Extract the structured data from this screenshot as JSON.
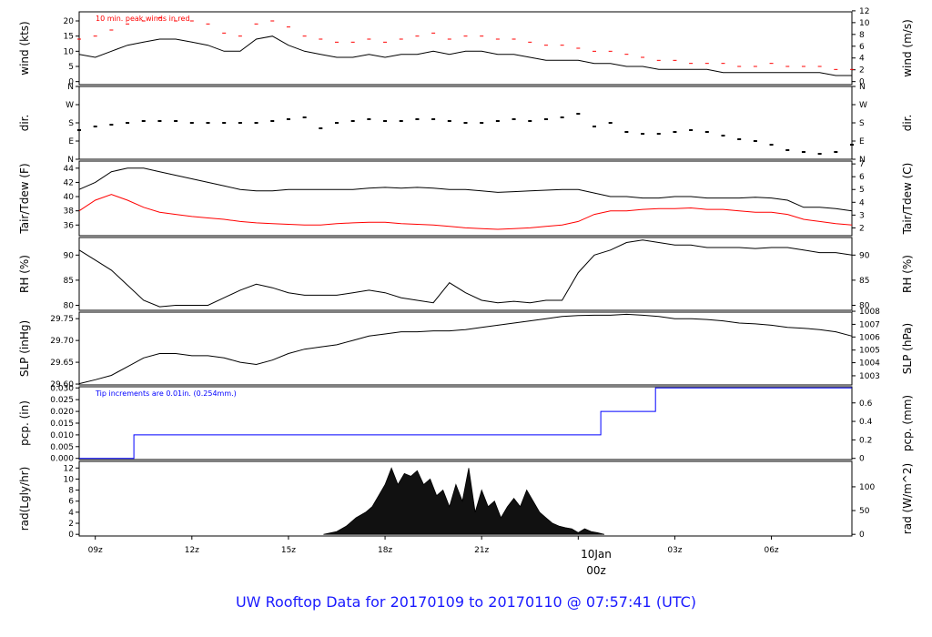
{
  "title": "UW Rooftop Data for 20170109  to  20170110 @ 07:57:41  (UTC)",
  "colors": {
    "title": "#1a1aff",
    "peak": "#ff0000",
    "dew": "#ff0000",
    "precip": "#0000ff",
    "date_marker": "#ff0000",
    "data": "#000000"
  },
  "x_axis": {
    "ticks": [
      {
        "label": "09z",
        "hour": 0.5
      },
      {
        "label": "12z",
        "hour": 3.5
      },
      {
        "label": "15z",
        "hour": 6.5
      },
      {
        "label": "18z",
        "hour": 9.5
      },
      {
        "label": "21z",
        "hour": 12.5
      },
      {
        "label": "03z",
        "hour": 18.5
      },
      {
        "label": "06z",
        "hour": 21.5
      }
    ],
    "date_marker": {
      "line1": "10Jan",
      "line2": "00z",
      "hour": 15.5
    }
  },
  "chart_data": [
    {
      "type": "line",
      "ylabel": "wind (kts)",
      "ylabel_right": "wind (m/s)",
      "annotation": "10 min. peak winds in red",
      "ylim": [
        -1,
        23
      ],
      "yticks_left": [
        0,
        5,
        10,
        15,
        20
      ],
      "yticks_right": [
        "0",
        "2",
        "4",
        "6",
        "8",
        "10",
        "12"
      ],
      "right_tick_values_kts": [
        0,
        3.89,
        7.78,
        11.66,
        15.55,
        19.44,
        23.33
      ],
      "series": [
        {
          "role": "wind",
          "x": [
            0,
            0.5,
            1,
            1.5,
            2,
            2.5,
            3,
            3.5,
            4,
            4.5,
            5,
            5.5,
            6,
            6.5,
            7,
            7.5,
            8,
            8.5,
            9,
            9.5,
            10,
            10.5,
            11,
            11.5,
            12,
            12.5,
            13,
            13.5,
            14,
            14.5,
            15,
            15.5,
            16,
            16.5,
            17,
            17.5,
            18,
            18.5,
            19,
            19.5,
            20,
            20.5,
            21,
            21.5,
            22,
            22.5,
            23,
            23.5,
            24
          ],
          "y": [
            9,
            8,
            10,
            12,
            13,
            14,
            14,
            13,
            12,
            10,
            10,
            14,
            15,
            12,
            10,
            9,
            8,
            8,
            9,
            8,
            9,
            9,
            10,
            9,
            10,
            10,
            9,
            9,
            8,
            7,
            7,
            7,
            6,
            6,
            5,
            5,
            4,
            4,
            4,
            4,
            3,
            3,
            3,
            3,
            3,
            3,
            3,
            2,
            2
          ]
        },
        {
          "role": "peak",
          "x": [
            0,
            0.5,
            1,
            1.5,
            2,
            2.5,
            3,
            3.5,
            4,
            4.5,
            5,
            5.5,
            6,
            6.5,
            7,
            7.5,
            8,
            8.5,
            9,
            9.5,
            10,
            10.5,
            11,
            11.5,
            12,
            12.5,
            13,
            13.5,
            14,
            14.5,
            15,
            15.5,
            16,
            16.5,
            17,
            17.5,
            18,
            18.5,
            19,
            19.5,
            20,
            20.5,
            21,
            21.5,
            22,
            22.5,
            23,
            23.5,
            24
          ],
          "y": [
            14,
            15,
            17,
            19,
            20,
            21,
            20,
            20,
            19,
            16,
            15,
            19,
            20,
            18,
            15,
            14,
            13,
            13,
            14,
            13,
            14,
            15,
            16,
            14,
            15,
            15,
            14,
            14,
            13,
            12,
            12,
            11,
            10,
            10,
            9,
            8,
            7,
            7,
            6,
            6,
            6,
            5,
            5,
            6,
            5,
            5,
            5,
            4,
            4
          ]
        }
      ]
    },
    {
      "type": "scatter",
      "ylabel": "dir.",
      "ylabel_right": "dir.",
      "ylim": [
        0,
        4
      ],
      "yticks": [
        "N",
        "E",
        "S",
        "W",
        "N"
      ],
      "series": [
        {
          "role": "direction",
          "x": [
            0,
            0.5,
            1,
            1.5,
            2,
            2.5,
            3,
            3.5,
            4,
            4.5,
            5,
            5.5,
            6,
            6.5,
            7,
            7.5,
            8,
            8.5,
            9,
            9.5,
            10,
            10.5,
            11,
            11.5,
            12,
            12.5,
            13,
            13.5,
            14,
            14.5,
            15,
            15.5,
            16,
            16.5,
            17,
            17.5,
            18,
            18.5,
            19,
            19.5,
            20,
            20.5,
            21,
            21.5,
            22,
            22.5,
            23,
            23.5,
            24
          ],
          "y": [
            1.6,
            1.8,
            1.9,
            2.0,
            2.1,
            2.1,
            2.1,
            2.0,
            2.0,
            2.0,
            2.0,
            2.0,
            2.1,
            2.2,
            2.3,
            1.7,
            2.0,
            2.1,
            2.2,
            2.1,
            2.1,
            2.2,
            2.2,
            2.1,
            2.0,
            2.0,
            2.1,
            2.2,
            2.1,
            2.2,
            2.3,
            2.5,
            1.8,
            2.0,
            1.5,
            1.4,
            1.4,
            1.5,
            1.6,
            1.5,
            1.3,
            1.1,
            1.0,
            0.8,
            0.5,
            0.4,
            0.3,
            0.4,
            0.8
          ]
        }
      ]
    },
    {
      "type": "line",
      "ylabel": "Tair/Tdew (F)",
      "ylabel_right": "Tair/Tdew (C)",
      "ylim": [
        34.5,
        45
      ],
      "yticks_left": [
        36,
        38,
        40,
        42,
        44
      ],
      "yticks_right": [
        "2",
        "3",
        "4",
        "5",
        "6",
        "7"
      ],
      "right_tick_values_F": [
        35.6,
        37.4,
        39.2,
        41.0,
        42.8,
        44.6
      ],
      "series": [
        {
          "role": "tair",
          "x": [
            0,
            0.5,
            1,
            1.5,
            2,
            2.5,
            3,
            3.5,
            4,
            4.5,
            5,
            5.5,
            6,
            6.5,
            7,
            7.5,
            8,
            8.5,
            9,
            9.5,
            10,
            10.5,
            11,
            11.5,
            12,
            12.5,
            13,
            13.5,
            14,
            14.5,
            15,
            15.5,
            16,
            16.5,
            17,
            17.5,
            18,
            18.5,
            19,
            19.5,
            20,
            20.5,
            21,
            21.5,
            22,
            22.5,
            23,
            23.5,
            24
          ],
          "y": [
            41,
            42,
            43.5,
            44,
            44,
            43.5,
            43,
            42.5,
            42,
            41.5,
            41,
            40.8,
            40.8,
            41,
            41,
            41,
            41,
            41,
            41.2,
            41.3,
            41.2,
            41.3,
            41.2,
            41,
            41,
            40.8,
            40.6,
            40.7,
            40.8,
            40.9,
            41,
            41,
            40.5,
            40,
            40,
            39.8,
            39.8,
            40,
            40,
            39.8,
            39.8,
            39.8,
            39.9,
            39.8,
            39.5,
            38.5,
            38.5,
            38.3,
            38
          ]
        },
        {
          "role": "tdew",
          "x": [
            0,
            0.5,
            1,
            1.5,
            2,
            2.5,
            3,
            3.5,
            4,
            4.5,
            5,
            5.5,
            6,
            6.5,
            7,
            7.5,
            8,
            8.5,
            9,
            9.5,
            10,
            10.5,
            11,
            11.5,
            12,
            12.5,
            13,
            13.5,
            14,
            14.5,
            15,
            15.5,
            16,
            16.5,
            17,
            17.5,
            18,
            18.5,
            19,
            19.5,
            20,
            20.5,
            21,
            21.5,
            22,
            22.5,
            23,
            23.5,
            24
          ],
          "y": [
            38,
            39.5,
            40.3,
            39.5,
            38.5,
            37.8,
            37.5,
            37.2,
            37,
            36.8,
            36.5,
            36.3,
            36.2,
            36.1,
            36,
            36,
            36.2,
            36.3,
            36.4,
            36.4,
            36.2,
            36.1,
            36,
            35.8,
            35.6,
            35.5,
            35.4,
            35.5,
            35.6,
            35.8,
            36,
            36.5,
            37.5,
            38,
            38,
            38.2,
            38.3,
            38.3,
            38.4,
            38.2,
            38.2,
            38,
            37.8,
            37.8,
            37.5,
            36.8,
            36.5,
            36.2,
            36
          ]
        }
      ]
    },
    {
      "type": "line",
      "ylabel": "RH (%)",
      "ylabel_right": "RH (%)",
      "ylim": [
        79,
        93.5
      ],
      "yticks_left": [
        80,
        85,
        90
      ],
      "yticks_right": [
        "80",
        "85",
        "90"
      ],
      "series": [
        {
          "role": "rh",
          "x": [
            0,
            0.5,
            1,
            1.5,
            2,
            2.5,
            3,
            3.5,
            4,
            4.5,
            5,
            5.5,
            6,
            6.5,
            7,
            7.5,
            8,
            8.5,
            9,
            9.5,
            10,
            10.5,
            11,
            11.5,
            12,
            12.5,
            13,
            13.5,
            14,
            14.5,
            15,
            15.5,
            16,
            16.5,
            17,
            17.5,
            18,
            18.5,
            19,
            19.5,
            20,
            20.5,
            21,
            21.5,
            22,
            22.5,
            23,
            23.5,
            24
          ],
          "y": [
            91,
            89,
            87,
            84,
            81,
            79.7,
            80,
            80,
            80,
            81.5,
            83,
            84.2,
            83.5,
            82.5,
            82,
            82,
            82,
            82.5,
            83,
            82.5,
            81.5,
            81,
            80.5,
            84.5,
            82.5,
            81,
            80.5,
            80.8,
            80.5,
            81,
            81,
            86.5,
            90,
            91,
            92.5,
            93,
            92.5,
            92,
            92,
            91.5,
            91.5,
            91.5,
            91.3,
            91.5,
            91.5,
            91,
            90.5,
            90.5,
            90
          ]
        }
      ]
    },
    {
      "type": "line",
      "ylabel": "SLP (inHg)",
      "ylabel_right": "SLP (hPa)",
      "ylim": [
        29.598,
        29.765
      ],
      "yticks_left": [
        "29.60",
        "29.65",
        "29.70",
        "29.75"
      ],
      "yticks_right": [
        "1003",
        "1004",
        "1005",
        "1006",
        "1007",
        "1008"
      ],
      "right_tick_values_inHg": [
        29.619,
        29.649,
        29.678,
        29.708,
        29.737,
        29.767
      ],
      "series": [
        {
          "role": "slp",
          "x": [
            0,
            0.5,
            1,
            1.5,
            2,
            2.5,
            3,
            3.5,
            4,
            4.5,
            5,
            5.5,
            6,
            6.5,
            7,
            7.5,
            8,
            8.5,
            9,
            9.5,
            10,
            10.5,
            11,
            11.5,
            12,
            12.5,
            13,
            13.5,
            14,
            14.5,
            15,
            15.5,
            16,
            16.5,
            17,
            17.5,
            18,
            18.5,
            19,
            19.5,
            20,
            20.5,
            21,
            21.5,
            22,
            22.5,
            23,
            23.5,
            24
          ],
          "y": [
            29.601,
            29.61,
            29.62,
            29.64,
            29.66,
            29.67,
            29.67,
            29.665,
            29.665,
            29.66,
            29.65,
            29.645,
            29.655,
            29.67,
            29.68,
            29.685,
            29.69,
            29.7,
            29.71,
            29.715,
            29.72,
            29.72,
            29.722,
            29.722,
            29.725,
            29.73,
            29.735,
            29.74,
            29.745,
            29.75,
            29.755,
            29.757,
            29.758,
            29.758,
            29.76,
            29.758,
            29.755,
            29.75,
            29.75,
            29.748,
            29.745,
            29.74,
            29.738,
            29.735,
            29.73,
            29.728,
            29.725,
            29.72,
            29.71
          ]
        }
      ]
    },
    {
      "type": "line",
      "ylabel": "pcp. (in)",
      "ylabel_right": "pcp. (mm)",
      "annotation": "Tip increments are 0.01in. (0.254mm.)",
      "ylim": [
        -0.0005,
        0.0305
      ],
      "yticks_left": [
        "0.000",
        "0.005",
        "0.010",
        "0.015",
        "0.020",
        "0.025",
        "0.030"
      ],
      "yticks_right": [
        "0",
        "0.2",
        "0.4",
        "0.6"
      ],
      "right_tick_values_in": [
        0,
        0.00787,
        0.01575,
        0.02362
      ],
      "series": [
        {
          "role": "precip",
          "x": [
            0,
            1.7,
            1.7,
            16.2,
            16.2,
            17.9,
            17.9,
            24
          ],
          "y": [
            0,
            0,
            0.01,
            0.01,
            0.02,
            0.02,
            0.03,
            0.03
          ]
        }
      ]
    },
    {
      "type": "area",
      "ylabel": "rad(Lgly/hr)",
      "ylabel_right": "rad (W/m^2)",
      "ylim": [
        -0.3,
        13.2
      ],
      "yticks_left": [
        0,
        2,
        4,
        6,
        8,
        10,
        12
      ],
      "yticks_right": [
        "0",
        "50",
        "100"
      ],
      "right_tick_values_lgly": [
        0,
        4.3,
        8.6
      ],
      "series": [
        {
          "role": "radiation",
          "x": [
            7.6,
            8,
            8.3,
            8.6,
            8.9,
            9.1,
            9.3,
            9.5,
            9.7,
            9.9,
            10.1,
            10.3,
            10.5,
            10.7,
            10.9,
            11.1,
            11.3,
            11.5,
            11.7,
            11.9,
            12.1,
            12.3,
            12.5,
            12.7,
            12.9,
            13.1,
            13.3,
            13.5,
            13.7,
            13.9,
            14.1,
            14.3,
            14.5,
            14.7,
            14.9,
            15.1,
            15.3,
            15.5,
            15.7,
            15.9,
            16.1,
            16.3
          ],
          "y": [
            0,
            0.5,
            1.5,
            3,
            4,
            5,
            7,
            9,
            12,
            9,
            11,
            10.5,
            11.5,
            9,
            10,
            7,
            8,
            5,
            9,
            6,
            12,
            4,
            8,
            5,
            6,
            3,
            5,
            6.5,
            5,
            8,
            6,
            4,
            3,
            2,
            1.5,
            1.2,
            1,
            0.3,
            1,
            0.5,
            0.3,
            0
          ]
        }
      ]
    }
  ]
}
